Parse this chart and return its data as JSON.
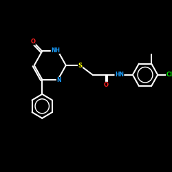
{
  "bg": "#000000",
  "bond_color": "#ffffff",
  "N_color": "#1a9fff",
  "O_color": "#ff2020",
  "S_color": "#ffff00",
  "Cl_color": "#00dd00",
  "lw": 1.5,
  "xlim": [
    0,
    10
  ],
  "ylim": [
    0,
    10
  ],
  "figsize": [
    2.5,
    2.5
  ],
  "dpi": 100
}
